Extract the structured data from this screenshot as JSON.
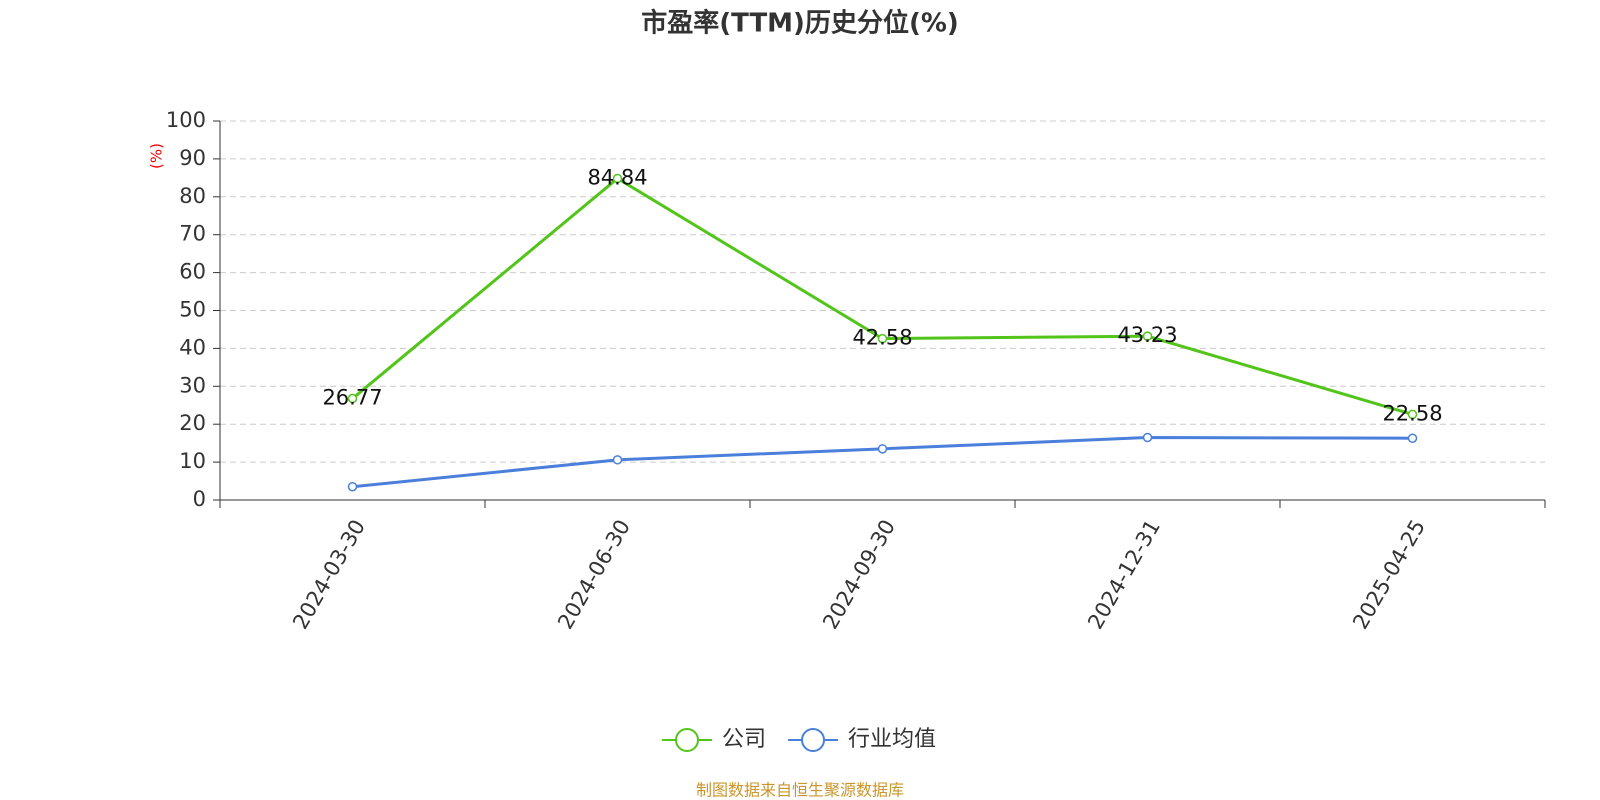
{
  "chart_data": {
    "type": "line",
    "title": "市盈率(TTM)历史分位(%)",
    "y_label": "(%)",
    "categories": [
      "2024-03-30",
      "2024-06-30",
      "2024-09-30",
      "2024-12-31",
      "2025-04-25"
    ],
    "series": [
      {
        "name": "公司",
        "color": "#52c41a",
        "values": [
          26.77,
          84.84,
          42.58,
          43.23,
          22.58
        ],
        "show_labels": true
      },
      {
        "name": "行业均值",
        "color": "#4a7fdb",
        "values": [
          3.5,
          10.6,
          13.5,
          16.5,
          16.3
        ],
        "show_labels": false
      }
    ],
    "ylim": [
      0,
      100
    ],
    "yticks": [
      0,
      10,
      20,
      30,
      40,
      50,
      60,
      70,
      80,
      90,
      100
    ],
    "grid": true,
    "legend": "bottom",
    "source": "制图数据来自恒生聚源数据库"
  }
}
